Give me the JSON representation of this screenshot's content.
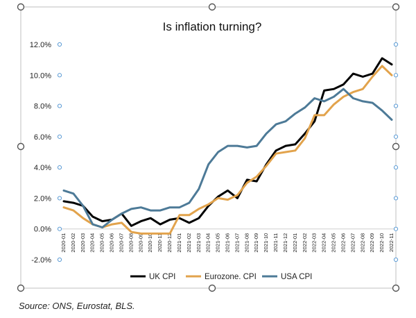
{
  "chart_data": {
    "type": "line",
    "title": "Is inflation turning?",
    "xlabel": "",
    "ylabel": "",
    "ylim": [
      -2,
      12
    ],
    "y_ticks": [
      "12.0%",
      "10.0%",
      "8.0%",
      "6.0%",
      "4.0%",
      "2.0%",
      "0.0%",
      "-2.0%"
    ],
    "y_tick_values": [
      12,
      10,
      8,
      6,
      4,
      2,
      0,
      -2
    ],
    "grid": false,
    "legend_position": "bottom",
    "categories": [
      "2020-01",
      "2020-02",
      "2020-03",
      "2020-04",
      "2020-05",
      "2020-06",
      "2020-07",
      "2020-08",
      "2020-09",
      "2020-10",
      "2020-11",
      "2020-12",
      "2021-01",
      "2021-02",
      "2021-03",
      "2021-04",
      "2021-05",
      "2021-06",
      "2021-07",
      "2021-08",
      "2021-09",
      "2021-10",
      "2021-11",
      "2021-12",
      "2022-01",
      "2022-02",
      "2022-03",
      "2022-04",
      "2022-05",
      "2022-06",
      "2022-07",
      "2022-08",
      "2022-09",
      "2022-10",
      "2022-11"
    ],
    "series": [
      {
        "name": "UK CPI",
        "color": "#000000",
        "values": [
          1.8,
          1.7,
          1.5,
          0.8,
          0.5,
          0.6,
          1.0,
          0.2,
          0.5,
          0.7,
          0.3,
          0.6,
          0.7,
          0.4,
          0.7,
          1.5,
          2.1,
          2.5,
          2.0,
          3.2,
          3.1,
          4.2,
          5.1,
          5.4,
          5.5,
          6.2,
          7.0,
          9.0,
          9.1,
          9.4,
          10.1,
          9.9,
          10.1,
          11.1,
          10.7
        ]
      },
      {
        "name": "Eurozone. CPI",
        "color": "#E2A34C",
        "values": [
          1.4,
          1.2,
          0.7,
          0.3,
          0.1,
          0.3,
          0.4,
          -0.2,
          -0.3,
          -0.3,
          -0.3,
          -0.3,
          0.9,
          0.9,
          1.3,
          1.6,
          2.0,
          1.9,
          2.2,
          3.0,
          3.4,
          4.1,
          4.9,
          5.0,
          5.1,
          5.9,
          7.4,
          7.4,
          8.1,
          8.6,
          8.9,
          9.1,
          9.9,
          10.6,
          10.0
        ]
      },
      {
        "name": "USA CPI",
        "color": "#4D7A97",
        "values": [
          2.5,
          2.3,
          1.5,
          0.3,
          0.1,
          0.6,
          1.0,
          1.3,
          1.4,
          1.2,
          1.2,
          1.4,
          1.4,
          1.7,
          2.6,
          4.2,
          5.0,
          5.4,
          5.4,
          5.3,
          5.4,
          6.2,
          6.8,
          7.0,
          7.5,
          7.9,
          8.5,
          8.3,
          8.6,
          9.1,
          8.5,
          8.3,
          8.2,
          7.7,
          7.1
        ]
      }
    ]
  },
  "source_note": "Source: ONS, Eurostat, BLS."
}
